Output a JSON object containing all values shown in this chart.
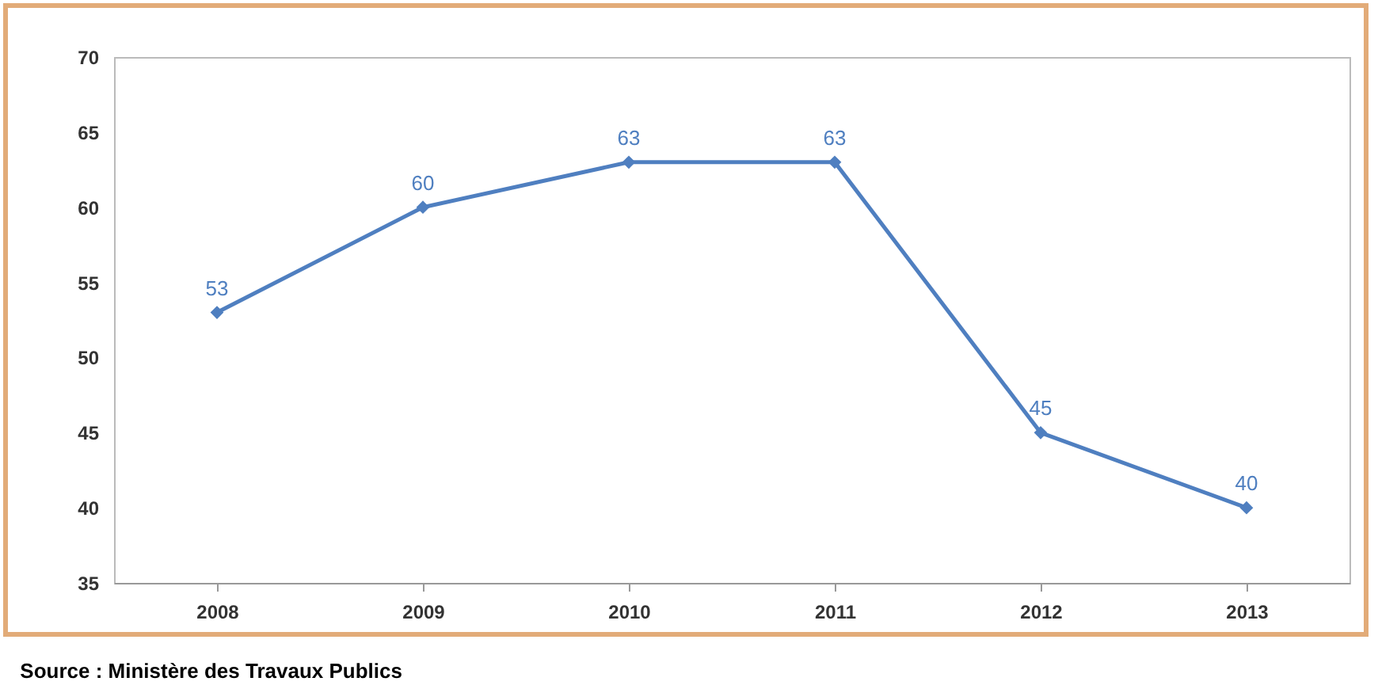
{
  "chart_data": {
    "type": "line",
    "categories": [
      "2008",
      "2009",
      "2010",
      "2011",
      "2012",
      "2013"
    ],
    "series": [
      {
        "color": "#4f7fc0",
        "values": [
          53,
          60,
          63,
          63,
          45,
          40
        ]
      }
    ],
    "ylim": [
      35,
      70
    ],
    "yticks": [
      35,
      40,
      45,
      50,
      55,
      60,
      65,
      70
    ],
    "grid": false,
    "marker": "diamond",
    "line_style": "solid",
    "data_labels": true,
    "annotations": [
      "Source : Ministère des Travaux Publics"
    ]
  }
}
